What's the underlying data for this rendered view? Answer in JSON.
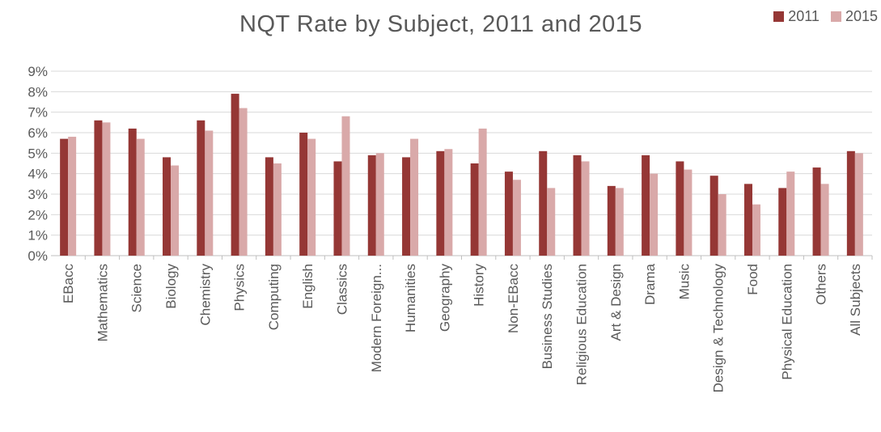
{
  "chart_data": {
    "type": "bar",
    "title": "NQT Rate by Subject, 2011 and 2015",
    "xlabel": "",
    "ylabel": "",
    "ylim": [
      0,
      9
    ],
    "yticks": [
      "0%",
      "1%",
      "2%",
      "3%",
      "4%",
      "5%",
      "6%",
      "7%",
      "8%",
      "9%"
    ],
    "grid": true,
    "legend_position": "top-right",
    "categories": [
      "EBacc",
      "Mathematics",
      "Science",
      "Biology",
      "Chemistry",
      "Physics",
      "Computing",
      "English",
      "Classics",
      "Modern Foreign...",
      "Humanities",
      "Geography",
      "History",
      "Non-EBacc",
      "Business Studies",
      "Religious Education",
      "Art & Design",
      "Drama",
      "Music",
      "Design & Technology",
      "Food",
      "Physical Education",
      "Others",
      "All Subjects"
    ],
    "series": [
      {
        "name": "2011",
        "color": "#953735",
        "values": [
          5.7,
          6.6,
          6.2,
          4.8,
          6.6,
          7.9,
          4.8,
          6.0,
          4.6,
          4.9,
          4.8,
          5.1,
          4.5,
          4.1,
          5.1,
          4.9,
          3.4,
          4.9,
          4.6,
          3.9,
          3.5,
          3.3,
          4.3,
          5.1
        ]
      },
      {
        "name": "2015",
        "color": "#D9A9A9",
        "values": [
          5.8,
          6.5,
          5.7,
          4.4,
          6.1,
          7.2,
          4.5,
          5.7,
          6.8,
          5.0,
          5.7,
          5.2,
          6.2,
          3.7,
          3.3,
          4.6,
          3.3,
          4.0,
          4.2,
          3.0,
          2.5,
          4.1,
          3.5,
          5.0
        ]
      }
    ]
  }
}
